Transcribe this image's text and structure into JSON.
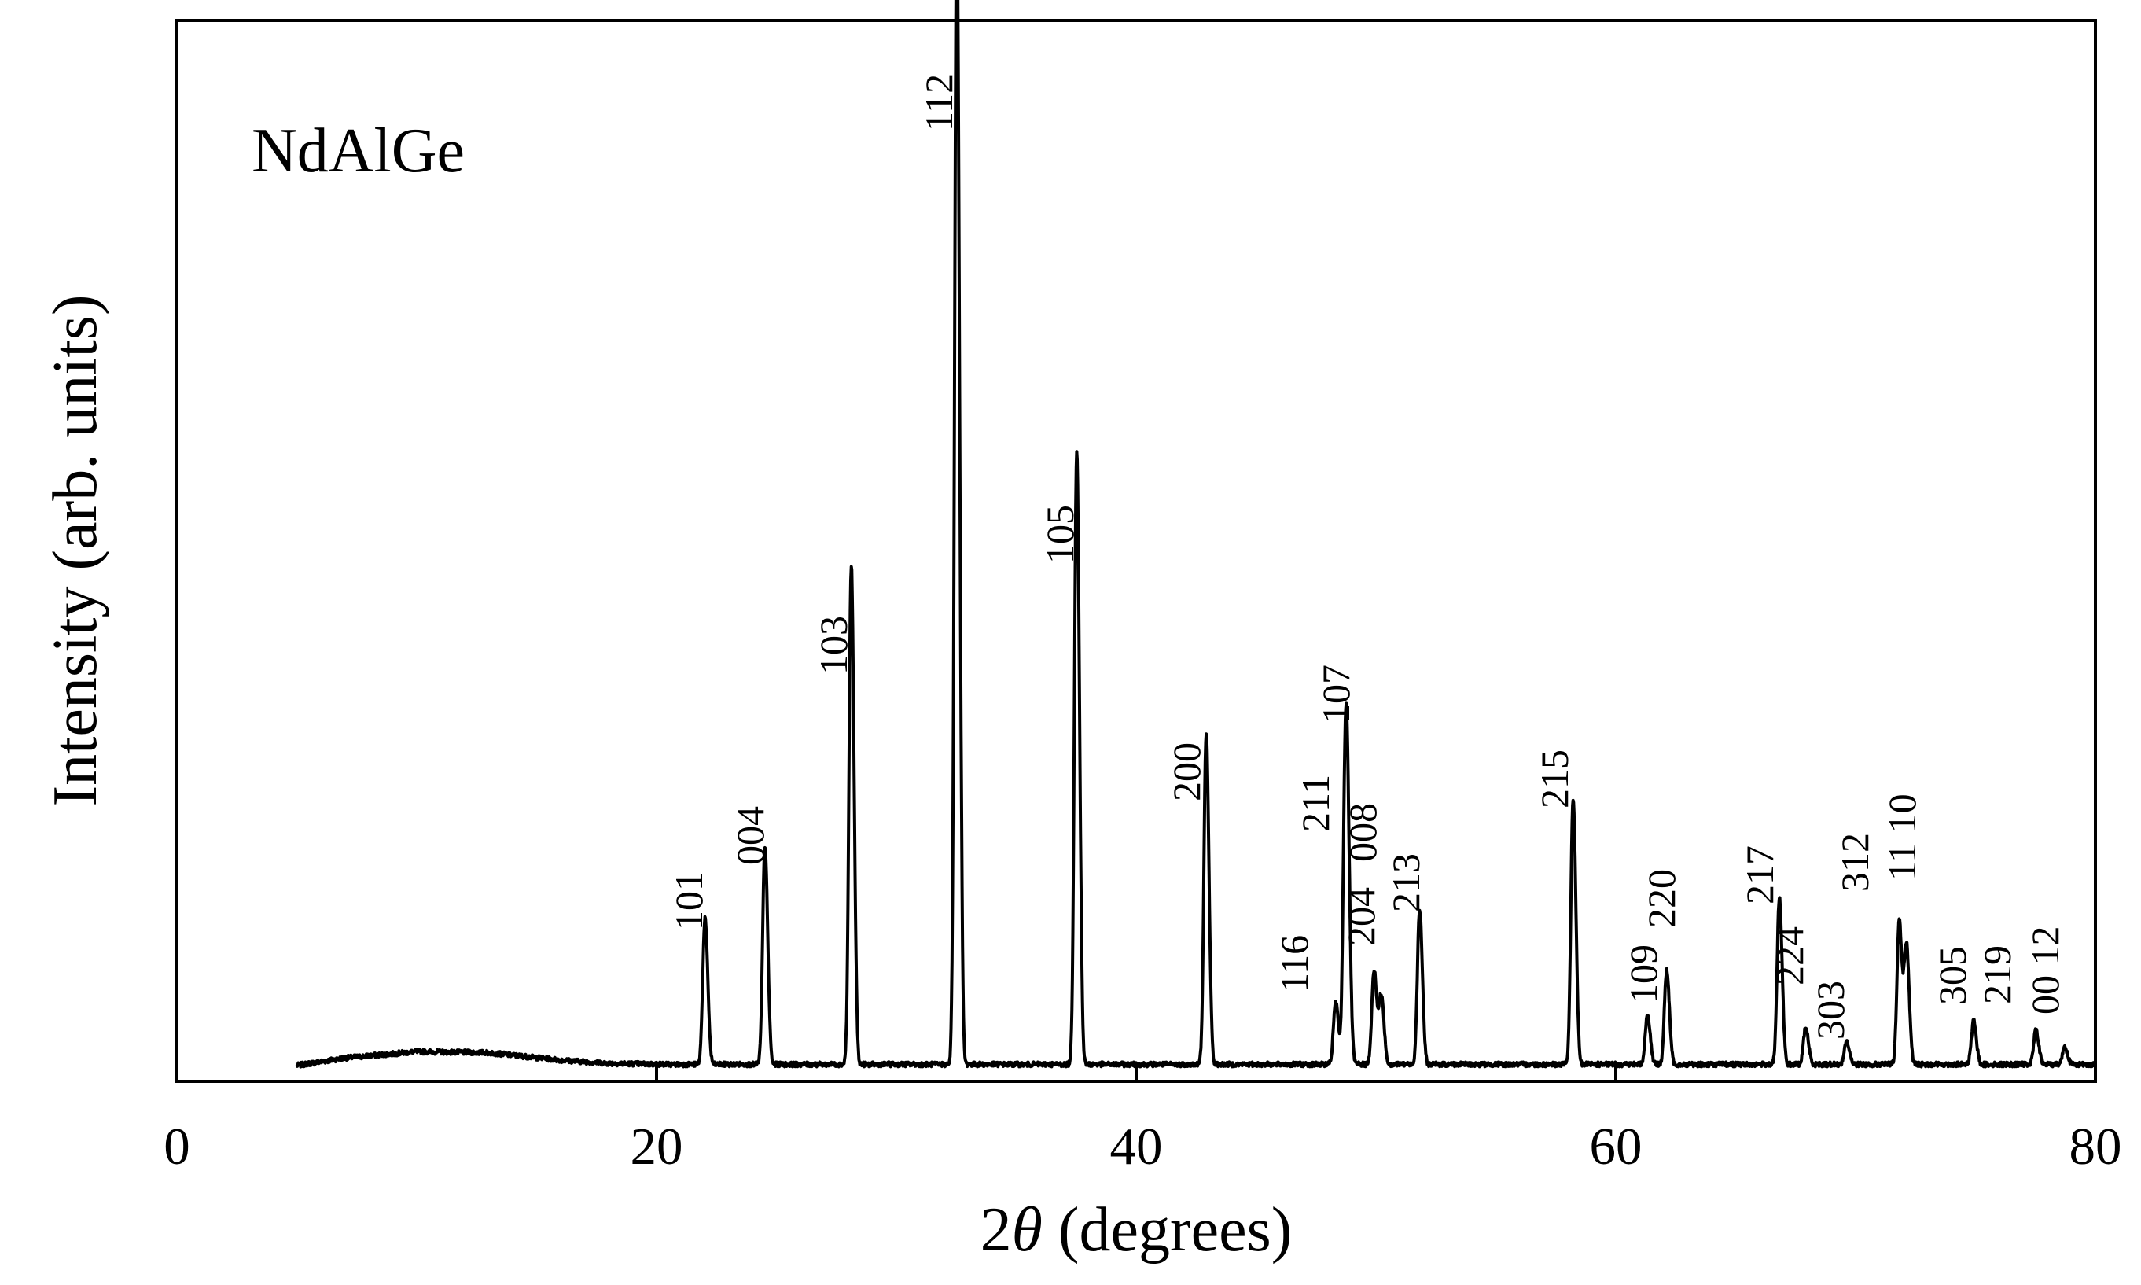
{
  "chart_data": {
    "type": "line",
    "sample_label": "NdAlGe",
    "xlabel": {
      "prefix": "2",
      "symbol": "θ",
      "suffix": " (degrees)"
    },
    "ylabel": "Intensity (arb. units)",
    "xlim": [
      0,
      80
    ],
    "ylim": [
      0,
      100
    ],
    "x_ticks": [
      0,
      20,
      40,
      60,
      80
    ],
    "y_ticks_labeled": false,
    "grid": false,
    "legend": "none",
    "colors": {
      "line": "#000000",
      "axes": "#000000"
    },
    "background": {
      "x": [
        5,
        7,
        10,
        13,
        16,
        18,
        20.5
      ],
      "y": [
        1.5,
        2.2,
        2.8,
        2.7,
        2.0,
        1.7,
        1.6
      ],
      "tail_level": 1.6,
      "range": [
        5,
        80
      ]
    },
    "peaks": [
      {
        "label": "101",
        "x": 22.0,
        "y": 13.1
      },
      {
        "label": "004",
        "x": 24.5,
        "y": 18.8
      },
      {
        "label": "103",
        "x": 28.1,
        "y": 40.8
      },
      {
        "label": "112",
        "x": 32.5,
        "y": 91.5
      },
      {
        "label": "105",
        "x": 37.5,
        "y": 49.9
      },
      {
        "label": "200",
        "x": 42.9,
        "y": 27.6
      },
      {
        "label": "116",
        "x": 48.3,
        "y": 6.5
      },
      {
        "label": "211",
        "x": 48.7,
        "y": 22.8
      },
      {
        "label": "107",
        "x": 48.8,
        "y": 12.0
      },
      {
        "label": "204",
        "x": 49.9,
        "y": 9.0
      },
      {
        "label": "008",
        "x": 50.2,
        "y": 7.0
      },
      {
        "label": "213",
        "x": 51.8,
        "y": 13.8
      },
      {
        "label": "215",
        "x": 58.2,
        "y": 22.5
      },
      {
        "label": "109",
        "x": 61.3,
        "y": 5.5
      },
      {
        "label": "220",
        "x": 62.1,
        "y": 9.0
      },
      {
        "label": "217",
        "x": 66.8,
        "y": 14.7
      },
      {
        "label": "224",
        "x": 67.9,
        "y": 4.5
      },
      {
        "label": "303",
        "x": 69.6,
        "y": 3.4
      },
      {
        "label": "312",
        "x": 71.8,
        "y": 13.0
      },
      {
        "label": "11 10",
        "x": 72.1,
        "y": 11.0
      },
      {
        "label": "305",
        "x": 74.9,
        "y": 5.0
      },
      {
        "label": "219",
        "x": 77.5,
        "y": 4.3
      },
      {
        "label": "00 12",
        "x": 78.7,
        "y": 3.0
      }
    ]
  }
}
